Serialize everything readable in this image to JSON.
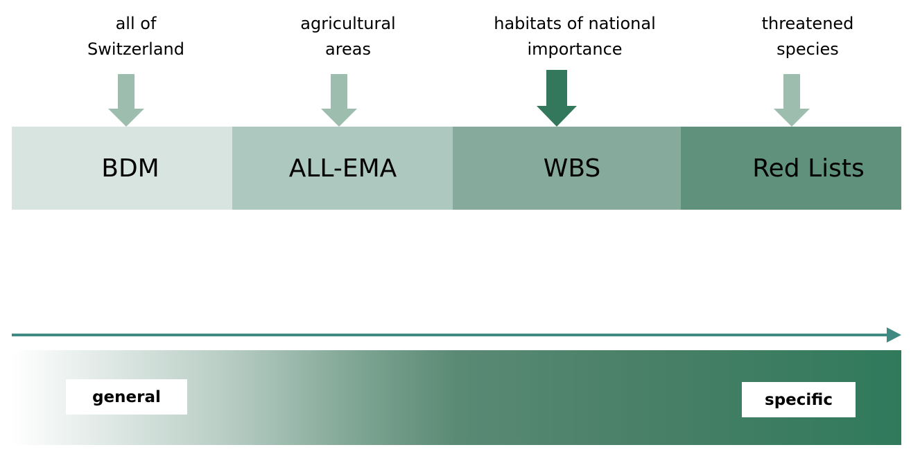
{
  "colors": {
    "seg_1": "#d7e4df",
    "seg_2": "#adc8bf",
    "seg_3": "#86ab9c",
    "seg_4": "#5f917d",
    "arrow_light": "#9dbdaf",
    "arrow_dark": "#33775d",
    "scale_arrow": "#3f8a82",
    "gradient_start": "#ffffff",
    "gradient_end": "#307a5c"
  },
  "columns": [
    {
      "caption": "all of\nSwitzerland",
      "label": "BDM",
      "arrow": "light"
    },
    {
      "caption": "agricultural\nareas",
      "label": "ALL-EMA",
      "arrow": "light"
    },
    {
      "caption": "habitats of national\nimportance",
      "label": "WBS",
      "arrow": "dark"
    },
    {
      "caption": "threatened\nspecies",
      "label": "Red Lists",
      "arrow": "light"
    }
  ],
  "scale": {
    "start_label": "general",
    "end_label": "specific"
  }
}
